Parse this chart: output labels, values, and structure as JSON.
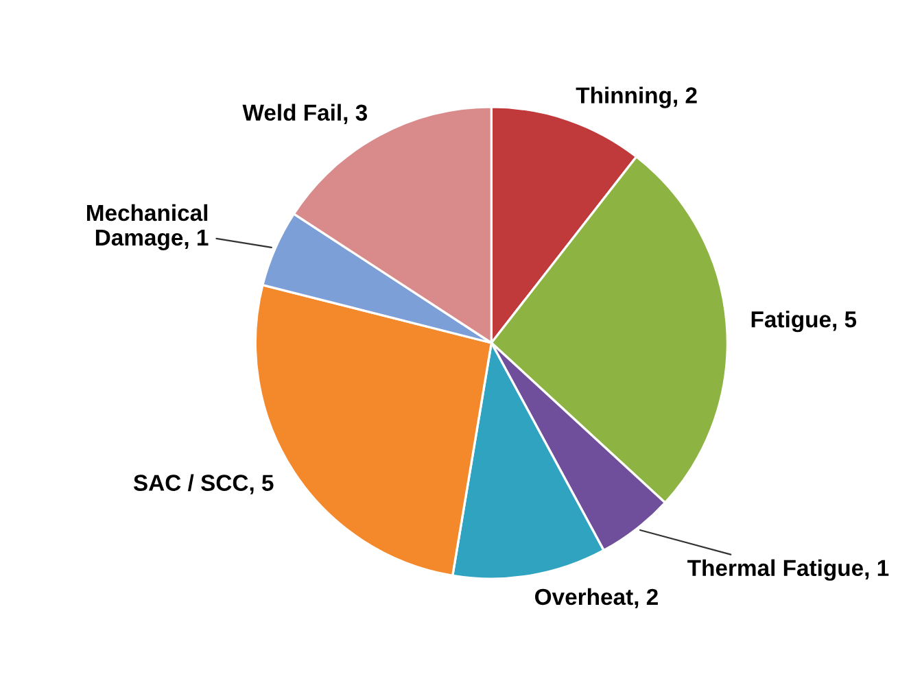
{
  "chart_data": {
    "type": "pie",
    "categories": [
      "Thinning, 2",
      "Fatigue, 5",
      "Thermal Fatigue, 1",
      "Overheat, 2",
      "SAC / SCC, 5",
      "Mechanical\nDamage, 1",
      "Weld Fail, 3"
    ],
    "values": [
      2,
      5,
      1,
      2,
      5,
      1,
      3
    ],
    "colors": [
      "#c0393b",
      "#8db443",
      "#6f4f9c",
      "#2fa3c0",
      "#f4892b",
      "#7c9fd8",
      "#d98b8b"
    ]
  }
}
